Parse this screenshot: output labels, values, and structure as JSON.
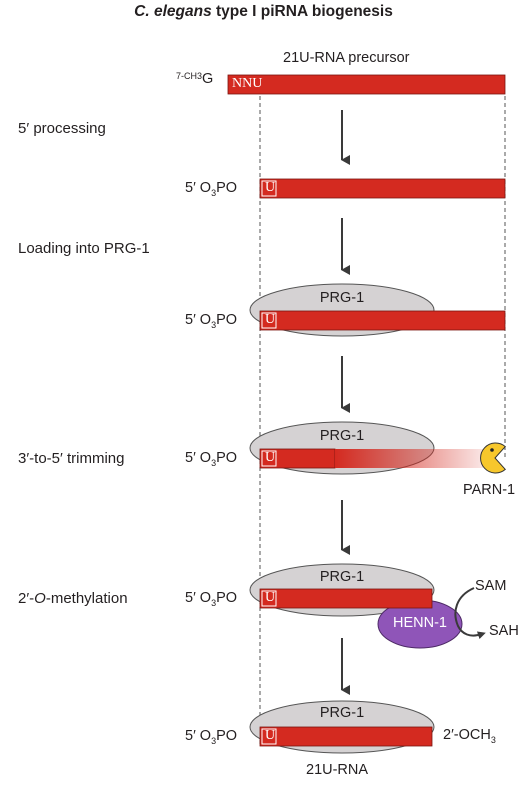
{
  "title": {
    "genus": "C. elegans",
    "rest": " type I piRNA biogenesis"
  },
  "precursor_label": "21U-RNA precursor",
  "cap_prefix": "7-CH",
  "cap_sub": "3",
  "cap_g": "G",
  "precursor_bases": "NNU",
  "phosphate": {
    "prefix": "5′ O",
    "sub": "3",
    "suffix": "PO"
  },
  "uridine": "U",
  "steps": {
    "processing": "5′ processing",
    "loading": "Loading into PRG-1",
    "trimming": "3′-to-5′ trimming",
    "methylation_pre": "2′-",
    "methylation_o": "O",
    "methylation_post": "-methylation"
  },
  "proteins": {
    "prg1": "PRG-1",
    "parn1": "PARN-1",
    "henn1": "HENN-1"
  },
  "cofactors": {
    "sam": "SAM",
    "sah": "SAH"
  },
  "modification": {
    "prefix": "2′-OCH",
    "sub": "3"
  },
  "product_label": "21U-RNA",
  "colors": {
    "rna": "#d42a20",
    "protein": "#d5d2d3",
    "henn": "#8f55b8",
    "parn": "#f7c72c",
    "arrow": "#3a3a3a"
  }
}
